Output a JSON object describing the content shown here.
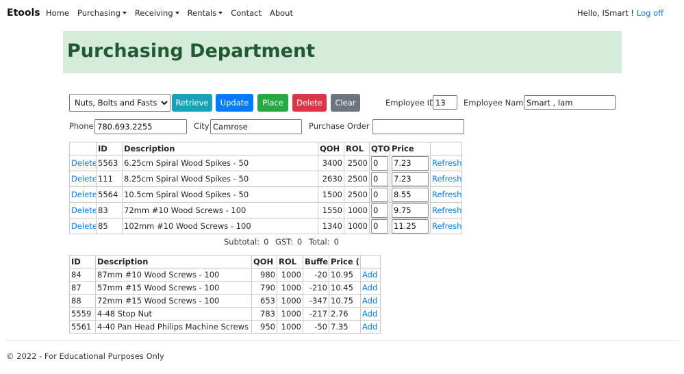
{
  "navbar": {
    "brand": "Etools",
    "links": [
      {
        "text": "Home",
        "dropdown": false
      },
      {
        "text": "Purchasing",
        "dropdown": true
      },
      {
        "text": "Receiving",
        "dropdown": true
      },
      {
        "text": "Rentals",
        "dropdown": true
      },
      {
        "text": "Contact",
        "dropdown": false
      },
      {
        "text": "About",
        "dropdown": false
      }
    ],
    "greeting": "Hello, ISmart !",
    "logoff": "Log off"
  },
  "header": {
    "title": "Purchasing Department"
  },
  "form": {
    "vendor": "Nuts, Bolts and Fastseners",
    "buttons": [
      {
        "text": "Retrieve",
        "color": "#17a2b8"
      },
      {
        "text": "Update",
        "color": "#007bff"
      },
      {
        "text": "Place",
        "color": "#28a745"
      },
      {
        "text": "Delete",
        "color": "#dc3545"
      },
      {
        "text": "Clear",
        "color": "#6c757d"
      }
    ],
    "employee_id_label": "Employee ID",
    "employee_id": "13",
    "employee_name_label": "Employee Name",
    "employee_name": "Smart , Iam",
    "phone_label": "Phone",
    "phone": "780.693.2255",
    "city_label": "City",
    "city": "Camrose",
    "po_label": "Purchase Order #"
  },
  "order_table": {
    "columns": [
      "ID",
      "Description",
      "QOH",
      "ROL",
      "QTO",
      "Price"
    ],
    "rows": [
      {
        "action": "Delete",
        "id": "5563",
        "description": "6.25cm Spiral Wood Spikes - 50",
        "qoh": 3400,
        "rol": 2500,
        "qto": "0",
        "price": "7.23",
        "refresh": "Refresh"
      },
      {
        "action": "Delete",
        "id": "111",
        "description": "8.25cm Spiral Wood Spikes - 50",
        "qoh": 2630,
        "rol": 2500,
        "qto": "0",
        "price": "7.23",
        "refresh": "Refresh"
      },
      {
        "action": "Delete",
        "id": "5564",
        "description": "10.5cm Spiral Wood Spikes - 50",
        "qoh": 1500,
        "rol": 2500,
        "qto": "0",
        "price": "8.55",
        "refresh": "Refresh"
      },
      {
        "action": "Delete",
        "id": "83",
        "description": "72mm #10 Wood Screws - 100",
        "qoh": 1550,
        "rol": 1000,
        "qto": "0",
        "price": "9.75",
        "refresh": "Refresh"
      },
      {
        "action": "Delete",
        "id": "85",
        "description": "102mm #10 Wood Screws - 100",
        "qoh": 1340,
        "rol": 1000,
        "qto": "0",
        "price": "11.25",
        "refresh": "Refresh"
      }
    ]
  },
  "totals": {
    "subtotal_label": "Subtotal:",
    "subtotal": 0,
    "gst_label": "GST:",
    "gst": 0,
    "total_label": "Total:",
    "total": 0
  },
  "inventory_table": {
    "columns": [
      "ID",
      "Description",
      "QOH",
      "ROL",
      "Buffer",
      "Price ($)"
    ],
    "rows": [
      {
        "id": "84",
        "description": "87mm #10 Wood Screws - 100",
        "qoh": 980,
        "rol": 1000,
        "buffer": -20,
        "price": "10.95",
        "action": "Add"
      },
      {
        "id": "87",
        "description": "57mm #15 Wood Screws - 100",
        "qoh": 790,
        "rol": 1000,
        "buffer": -210,
        "price": "10.45",
        "action": "Add"
      },
      {
        "id": "88",
        "description": "72mm #15 Wood Screws - 100",
        "qoh": 653,
        "rol": 1000,
        "buffer": -347,
        "price": "10.75",
        "action": "Add"
      },
      {
        "id": "5559",
        "description": "4-48 Stop Nut",
        "qoh": 783,
        "rol": 1000,
        "buffer": -217,
        "price": "2.76",
        "action": "Add"
      },
      {
        "id": "5561",
        "description": "4-40 Pan Head Philips Machine Screws",
        "qoh": 950,
        "rol": 1000,
        "buffer": -50,
        "price": "7.35",
        "action": "Add"
      }
    ]
  },
  "footer": {
    "text": "© 2022 - For Educational Purposes Only"
  }
}
